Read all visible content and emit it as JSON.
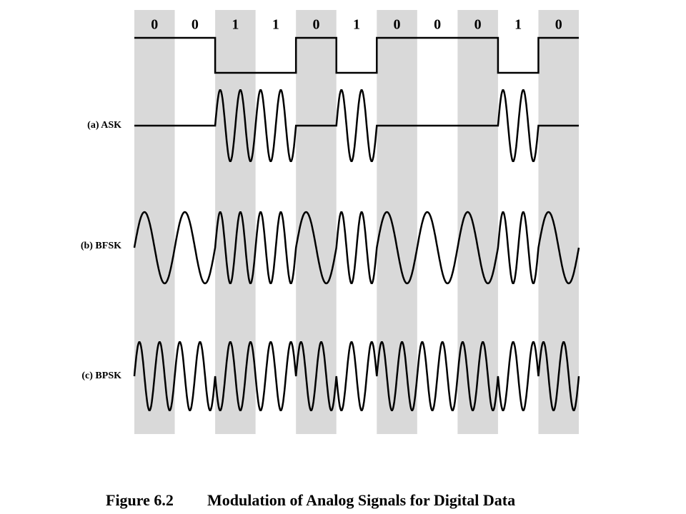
{
  "bits": [
    "0",
    "0",
    "1",
    "1",
    "0",
    "1",
    "0",
    "0",
    "0",
    "1",
    "0"
  ],
  "signals": [
    {
      "label": "(a) ASK"
    },
    {
      "label": "(b) BFSK"
    },
    {
      "label": "(c) BPSK"
    }
  ],
  "caption": {
    "figure": "Figure 6.2",
    "title": "Modulation of Analog Signals for Digital Data"
  }
}
